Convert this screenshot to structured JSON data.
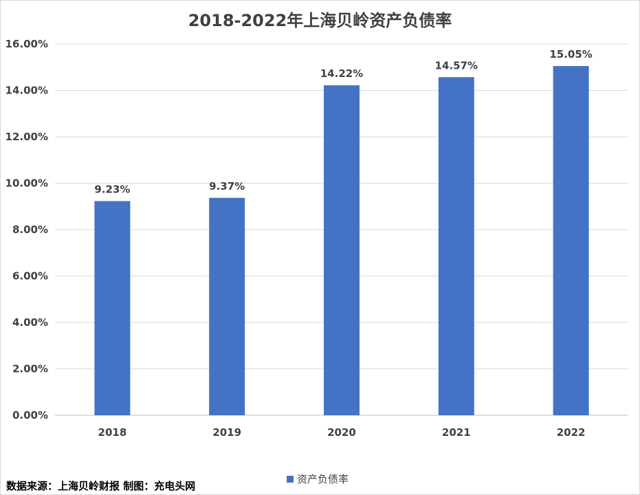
{
  "chart_data": {
    "type": "bar",
    "title": "2018-2022年上海贝岭资产负债率",
    "categories": [
      "2018",
      "2019",
      "2020",
      "2021",
      "2022"
    ],
    "series": [
      {
        "name": "资产负债率",
        "values": [
          9.23,
          9.37,
          14.22,
          14.57,
          15.05
        ],
        "color": "#4472c4"
      }
    ],
    "data_labels": [
      "9.23%",
      "9.37%",
      "14.22%",
      "14.57%",
      "15.05%"
    ],
    "ylim": [
      0,
      16
    ],
    "y_ticks": [
      "0.00%",
      "2.00%",
      "4.00%",
      "6.00%",
      "8.00%",
      "10.00%",
      "12.00%",
      "14.00%",
      "16.00%"
    ],
    "grid": true,
    "legend_position": "bottom"
  },
  "footer": {
    "source": "数据来源：上海贝岭财报  制图：充电头网"
  }
}
